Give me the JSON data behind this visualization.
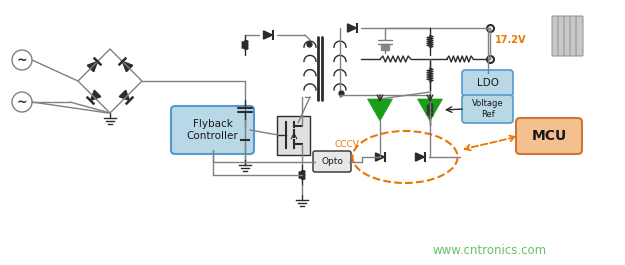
{
  "bg_color": "#ffffff",
  "line_color": "#808080",
  "dark_color": "#2c2c2c",
  "green_color": "#1a9e1a",
  "orange_color": "#e87800",
  "blue_box_color": "#b8d8e8",
  "blue_box_edge": "#5599cc",
  "mcu_color": "#f5c090",
  "mcu_edge": "#cc7733",
  "ldo_label": "LDO",
  "vref_label": "Voltage\nRef",
  "mcu_label": "MCU",
  "flyback_label": "Flyback\nController",
  "opto_label": "Opto",
  "cccv_label": "CCCV",
  "voltage_label": "17.2V",
  "website": "www.cntronics.com",
  "website_color": "#55bb55"
}
